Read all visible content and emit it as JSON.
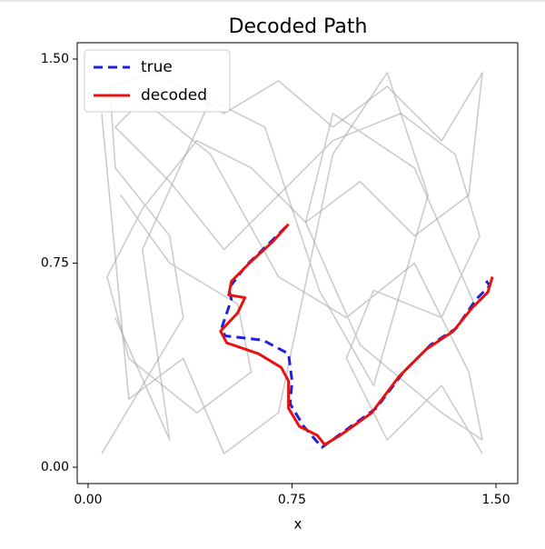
{
  "chart_data": {
    "type": "line",
    "title": "Decoded Path",
    "xlabel": "x",
    "xlim": [
      -0.04,
      1.58
    ],
    "ylim": [
      -0.06,
      1.56
    ],
    "xticks": [
      {
        "value": 0,
        "label": "0.00"
      },
      0.75,
      {
        "value": 1.5,
        "label": "1.50"
      }
    ],
    "yticks": [
      {
        "value": 0,
        "label": "0.00"
      },
      0.75,
      {
        "value": 1.5,
        "label": "1.50"
      }
    ],
    "legend": "upper left",
    "background": {
      "color": "#999999",
      "x": [
        0.05,
        0.2,
        0.35,
        0.3,
        0.1,
        0.08,
        0.25,
        0.5,
        0.7,
        0.9,
        1.1,
        1.3,
        1.45,
        1.4,
        1.2,
        1.0,
        0.8,
        0.6,
        0.4,
        0.2,
        0.07,
        0.15,
        0.4,
        0.6,
        0.55,
        0.3,
        0.12,
        null,
        1.45,
        1.3,
        1.1,
        0.95,
        1.05,
        1.3,
        1.44,
        1.35,
        1.15,
        0.9,
        0.7,
        0.5,
        0.3,
        0.1,
        0.2,
        0.45,
        0.7,
        0.95,
        1.2,
        1.4,
        1.45,
        1.3,
        1.0,
        0.8,
        0.9,
        1.2,
        1.42,
        null,
        0.1,
        0.3,
        0.2,
        0.45,
        0.65,
        0.85,
        1.05,
        1.25,
        1.1,
        0.9,
        0.7,
        0.5,
        0.35,
        0.15,
        0.05
      ],
      "y": [
        0.05,
        0.3,
        0.55,
        0.85,
        1.1,
        1.4,
        1.45,
        1.3,
        1.42,
        1.25,
        1.4,
        1.2,
        1.45,
        1.0,
        0.85,
        1.05,
        0.9,
        1.1,
        1.2,
        0.95,
        0.7,
        0.4,
        0.2,
        0.35,
        0.6,
        0.75,
        1.0,
        null,
        0.05,
        0.3,
        0.1,
        0.4,
        0.65,
        0.55,
        0.85,
        1.15,
        1.3,
        1.2,
        1.0,
        0.8,
        1.05,
        1.25,
        1.35,
        1.15,
        0.7,
        0.55,
        0.75,
        0.35,
        0.1,
        0.2,
        0.45,
        0.9,
        1.3,
        1.1,
        0.6,
        null,
        0.55,
        0.1,
        0.8,
        1.35,
        1.25,
        0.65,
        0.3,
        1.0,
        1.45,
        1.15,
        0.2,
        0.05,
        0.4,
        0.25,
        1.3
      ]
    },
    "series": [
      {
        "name": "true",
        "color": "#1f1fe0",
        "dash": true,
        "x": [
          0.727,
          0.66,
          0.583,
          0.517,
          0.527,
          0.493,
          0.503,
          0.643,
          0.737,
          0.75,
          0.743,
          0.793,
          0.86,
          0.943,
          1.06,
          1.16,
          1.26,
          1.353,
          1.427,
          1.477,
          1.453
        ],
        "values": [
          0.883,
          0.817,
          0.743,
          0.657,
          0.617,
          0.517,
          0.483,
          0.467,
          0.417,
          0.317,
          0.233,
          0.15,
          0.073,
          0.133,
          0.217,
          0.35,
          0.45,
          0.51,
          0.617,
          0.667,
          0.7
        ]
      },
      {
        "name": "decoded",
        "color": "#e8110f",
        "dash": false,
        "x": [
          0.737,
          0.677,
          0.593,
          0.527,
          0.517,
          0.577,
          0.55,
          0.487,
          0.51,
          0.627,
          0.71,
          0.737,
          0.737,
          0.777,
          0.843,
          0.87,
          0.927,
          1.043,
          1.143,
          1.243,
          1.343,
          1.41,
          1.47,
          1.487
        ],
        "values": [
          0.893,
          0.827,
          0.75,
          0.683,
          0.633,
          0.623,
          0.567,
          0.5,
          0.457,
          0.417,
          0.367,
          0.317,
          0.217,
          0.15,
          0.117,
          0.083,
          0.117,
          0.2,
          0.333,
          0.433,
          0.5,
          0.583,
          0.643,
          0.7
        ]
      }
    ]
  }
}
